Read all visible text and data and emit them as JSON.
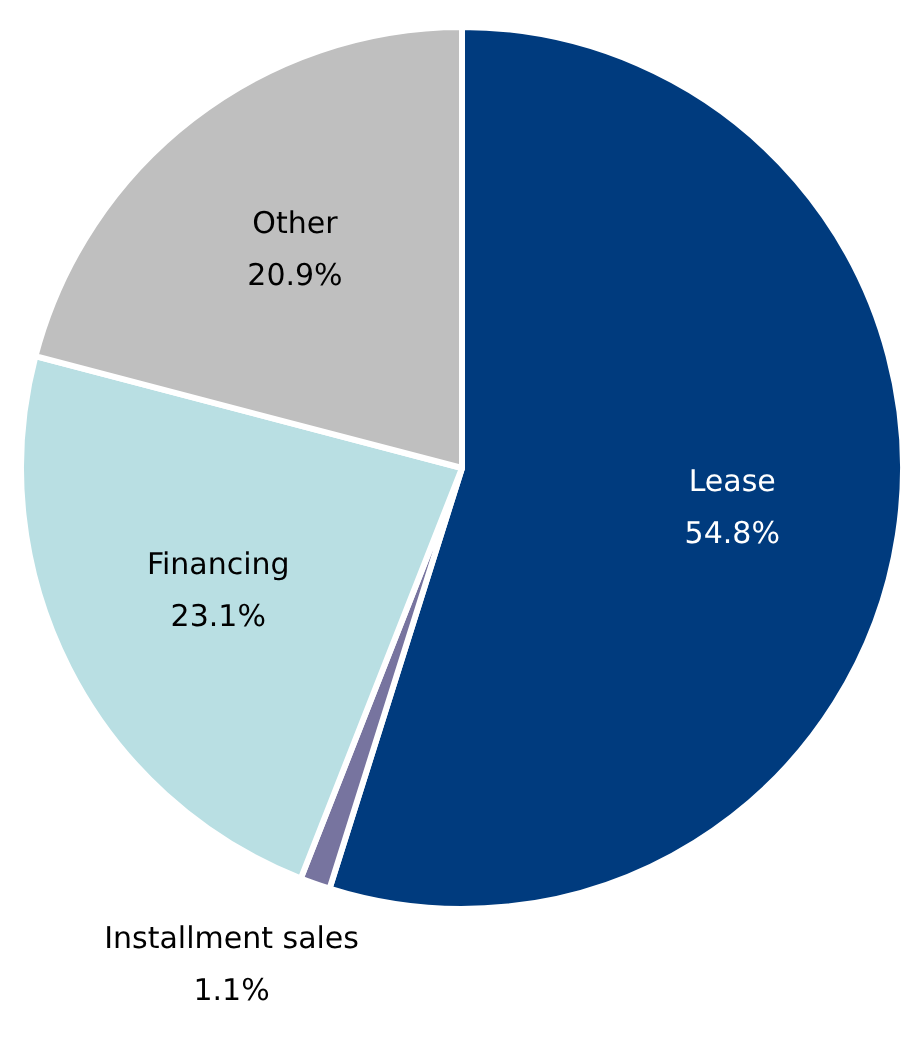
{
  "chart_data": {
    "type": "pie",
    "categories": [
      "Lease",
      "Installment sales",
      "Financing",
      "Other"
    ],
    "values": [
      54.8,
      1.1,
      23.1,
      20.9
    ],
    "value_labels": [
      "54.8%",
      "1.1%",
      "23.1%",
      "20.9%"
    ],
    "colors": [
      "#003b7e",
      "#77749f",
      "#b9dfe3",
      "#bfbfbf"
    ],
    "legend": false
  }
}
